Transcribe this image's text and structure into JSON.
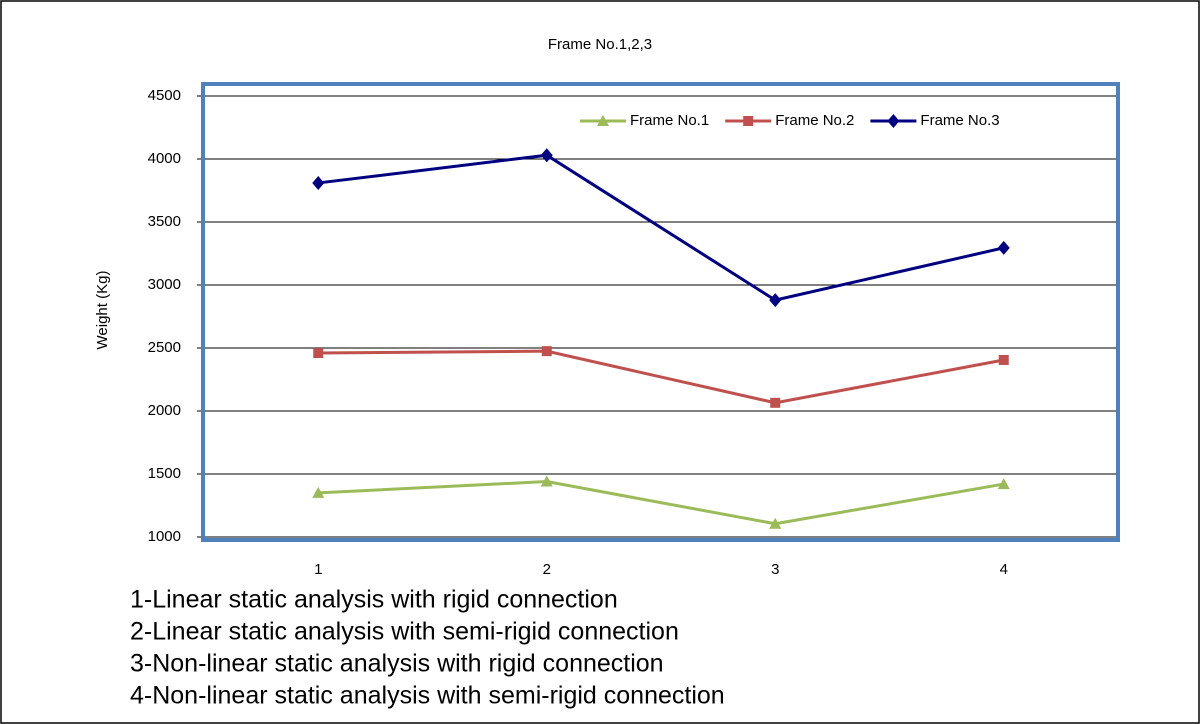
{
  "chart_data": {
    "type": "line",
    "title": "Frame No.1,2,3",
    "y_label": "Weight (Kg)",
    "categories": [
      "1",
      "2",
      "3",
      "4"
    ],
    "series": [
      {
        "name": "Frame No.1",
        "color": "#9bbb59",
        "marker": "triangle",
        "values": [
          1350,
          1440,
          1105,
          1420
        ]
      },
      {
        "name": "Frame No.2",
        "color": "#c0504d",
        "marker": "square",
        "values": [
          2460,
          2475,
          2065,
          2405
        ]
      },
      {
        "name": "Frame No.3",
        "color": "#000080",
        "marker": "diamond",
        "values": [
          3810,
          4030,
          2880,
          3295
        ]
      }
    ],
    "ylim": [
      1000,
      4500
    ],
    "yticks": [
      1000,
      1500,
      2000,
      2500,
      3000,
      3500,
      4000,
      4500
    ],
    "grid": true,
    "legend": "top-right",
    "annotations": [
      "1-Linear static analysis with rigid connection",
      "2-Linear static analysis with semi-rigid connection",
      "3-Non-linear static analysis with rigid connection",
      "4-Non-linear static analysis with semi-rigid connection"
    ]
  }
}
